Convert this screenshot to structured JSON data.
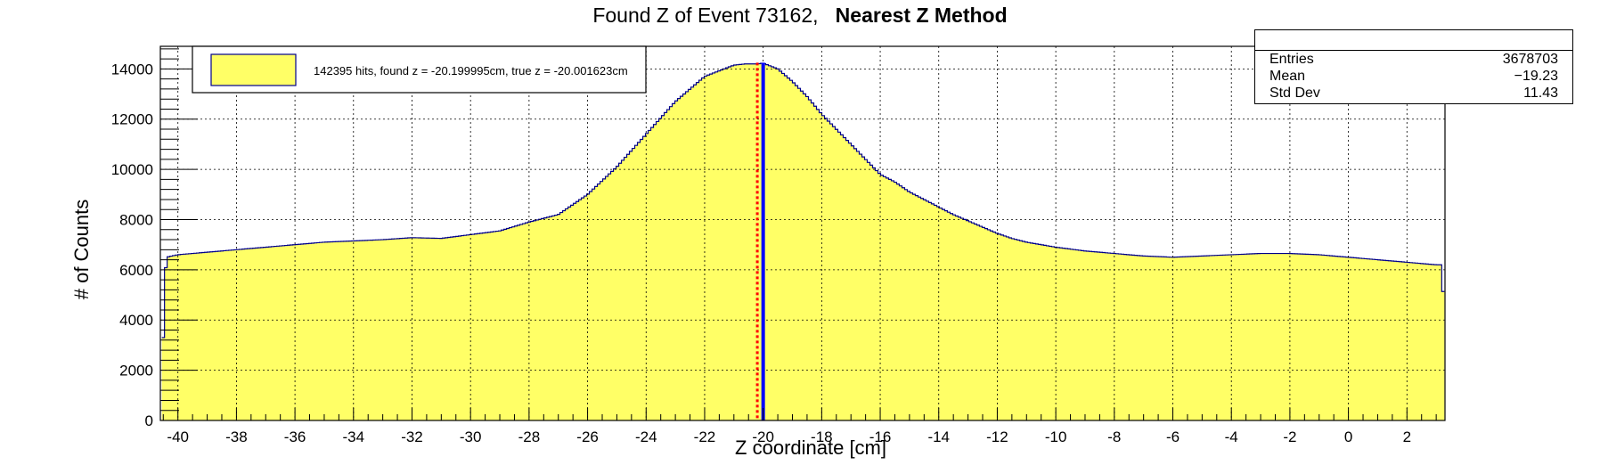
{
  "chart_data": {
    "type": "bar",
    "title_prefix": "Found Z of Event 73162,",
    "title_bold": "Nearest Z Method",
    "xlabel": "Z coordinate [cm]",
    "ylabel": "# of Counts",
    "xlim": [
      -40.6,
      3.3
    ],
    "ylim": [
      0,
      14900
    ],
    "x_ticks": [
      -40,
      -38,
      -36,
      -34,
      -32,
      -30,
      -28,
      -26,
      -24,
      -22,
      -20,
      -18,
      -16,
      -14,
      -12,
      -10,
      -8,
      -6,
      -4,
      -2,
      0,
      2
    ],
    "y_ticks": [
      0,
      2000,
      4000,
      6000,
      8000,
      10000,
      12000,
      14000
    ],
    "grid": true,
    "fill_color": "#ffff66",
    "line_color": "#00008b",
    "legend": {
      "label": "142395 hits, found z = -20.199995cm, true z = -20.001623cm",
      "position": "top-left"
    },
    "stats": {
      "rows": [
        {
          "label": "Entries",
          "value": "3678703"
        },
        {
          "label": "Mean",
          "value": "−19.23"
        },
        {
          "label": "Std Dev",
          "value": "11.43"
        }
      ]
    },
    "markers": [
      {
        "x": -20.2,
        "color": "#ff0000",
        "style": "dotted",
        "meaning": "found z"
      },
      {
        "x": -20.0,
        "color": "#0000ff",
        "style": "solid",
        "meaning": "true z"
      }
    ],
    "profile": {
      "x": [
        -40.5,
        -40.4,
        -40,
        -39,
        -38,
        -37,
        -36,
        -35,
        -34,
        -33,
        -32,
        -31,
        -30,
        -29,
        -28,
        -27,
        -26,
        -25,
        -24,
        -23,
        -22,
        -21,
        -20.6,
        -20.2,
        -20.0,
        -19.5,
        -19,
        -18.5,
        -18,
        -17.5,
        -17,
        -16.5,
        -16,
        -15.5,
        -15,
        -14.5,
        -14,
        -13.5,
        -13,
        -12.5,
        -12,
        -11.5,
        -11,
        -10,
        -9,
        -8,
        -7,
        -6,
        -5,
        -4,
        -3,
        -2,
        -1,
        0,
        1,
        2,
        3,
        3.2,
        3.3
      ],
      "y": [
        3300,
        6500,
        6600,
        6700,
        6800,
        6900,
        7000,
        7100,
        7150,
        7200,
        7280,
        7250,
        7400,
        7550,
        7900,
        8200,
        9000,
        10100,
        11400,
        12700,
        13700,
        14150,
        14200,
        14200,
        14230,
        14000,
        13500,
        12900,
        12200,
        11600,
        11000,
        10400,
        9800,
        9500,
        9100,
        8800,
        8500,
        8200,
        7950,
        7700,
        7450,
        7250,
        7100,
        6900,
        6750,
        6650,
        6550,
        6500,
        6550,
        6600,
        6650,
        6650,
        6600,
        6500,
        6400,
        6300,
        6200,
        6200,
        3100
      ]
    }
  }
}
